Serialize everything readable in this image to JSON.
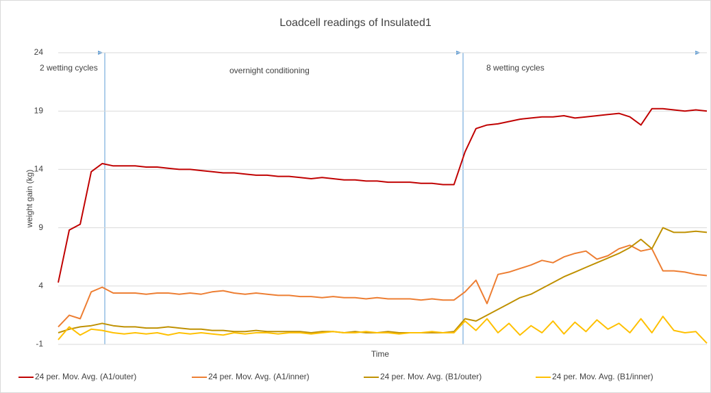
{
  "chart_data": {
    "type": "line",
    "title": "Loadcell readings of Insulated1",
    "x_label": "Time",
    "y_label": "weight gain (kg)",
    "annotations": [
      "2 wetting cycles",
      "overnight conditioning",
      "8 wetting cycles"
    ],
    "categories": [
      null,
      null,
      null,
      null,
      null,
      null,
      null,
      null,
      null,
      null,
      null,
      null,
      null,
      null,
      null,
      null,
      null,
      null,
      null,
      null,
      null,
      null,
      null,
      null,
      null,
      null,
      null,
      null,
      null,
      null,
      null,
      null,
      null,
      null,
      null,
      null,
      null,
      null,
      null,
      null,
      null,
      null,
      null,
      null,
      null,
      null,
      null,
      null,
      null,
      null,
      null,
      null,
      null,
      null,
      null,
      null,
      null,
      null,
      null,
      null
    ],
    "ylim": [
      -1,
      24
    ],
    "yticks": [
      -1,
      4,
      9,
      14,
      19,
      24
    ],
    "grid": true,
    "legend": "bottom",
    "series": [
      {
        "name": "24 per. Mov. Avg. (A1/outer)",
        "color": "#c00000",
        "values": [
          4.3,
          8.8,
          9.3,
          13.8,
          14.5,
          14.3,
          14.3,
          14.3,
          14.2,
          14.2,
          14.1,
          14.0,
          14.0,
          13.9,
          13.8,
          13.7,
          13.7,
          13.6,
          13.5,
          13.5,
          13.4,
          13.4,
          13.3,
          13.2,
          13.3,
          13.2,
          13.1,
          13.1,
          13.0,
          13.0,
          12.9,
          12.9,
          12.9,
          12.8,
          12.8,
          12.7,
          12.7,
          15.5,
          17.5,
          17.8,
          17.9,
          18.1,
          18.3,
          18.4,
          18.5,
          18.5,
          18.6,
          18.4,
          18.5,
          18.6,
          18.7,
          18.8,
          18.5,
          17.8,
          19.2,
          19.2,
          19.1,
          19.0,
          19.1,
          19.0
        ]
      },
      {
        "name": "24 per. Mov. Avg. (A1/inner)",
        "color": "#ed7d31",
        "values": [
          0.5,
          1.5,
          1.2,
          3.5,
          3.9,
          3.4,
          3.4,
          3.4,
          3.3,
          3.4,
          3.4,
          3.3,
          3.4,
          3.3,
          3.5,
          3.6,
          3.4,
          3.3,
          3.4,
          3.3,
          3.2,
          3.2,
          3.1,
          3.1,
          3.0,
          3.1,
          3.0,
          3.0,
          2.9,
          3.0,
          2.9,
          2.9,
          2.9,
          2.8,
          2.9,
          2.8,
          2.8,
          3.5,
          4.5,
          2.5,
          5.0,
          5.2,
          5.5,
          5.8,
          6.2,
          6.0,
          6.5,
          6.8,
          7.0,
          6.3,
          6.6,
          7.2,
          7.5,
          7.0,
          7.2,
          5.3,
          5.3,
          5.2,
          5.0,
          4.9
        ]
      },
      {
        "name": "24 per. Mov. Avg. (B1/outer)",
        "color": "#bf9000",
        "values": [
          0.0,
          0.3,
          0.5,
          0.6,
          0.8,
          0.6,
          0.5,
          0.5,
          0.4,
          0.4,
          0.5,
          0.4,
          0.3,
          0.3,
          0.2,
          0.2,
          0.1,
          0.1,
          0.2,
          0.1,
          0.1,
          0.1,
          0.1,
          0.0,
          0.1,
          0.1,
          0.0,
          0.1,
          0.0,
          0.0,
          0.1,
          0.0,
          0.0,
          0.0,
          0.0,
          0.0,
          0.1,
          1.2,
          1.0,
          1.5,
          2.0,
          2.5,
          3.0,
          3.3,
          3.8,
          4.3,
          4.8,
          5.2,
          5.6,
          6.0,
          6.4,
          6.8,
          7.3,
          8.0,
          7.2,
          9.0,
          8.6,
          8.6,
          8.7,
          8.6
        ]
      },
      {
        "name": "24 per. Mov. Avg. (B1/inner)",
        "color": "#ffc000",
        "values": [
          -0.6,
          0.5,
          -0.2,
          0.3,
          0.2,
          0.0,
          -0.1,
          0.0,
          -0.1,
          0.0,
          -0.2,
          0.0,
          -0.1,
          0.0,
          -0.1,
          -0.2,
          0.0,
          -0.1,
          0.0,
          0.0,
          -0.1,
          0.0,
          0.0,
          -0.1,
          0.0,
          0.1,
          0.0,
          0.0,
          0.1,
          0.0,
          0.0,
          -0.1,
          0.0,
          0.0,
          0.1,
          0.0,
          0.0,
          1.0,
          0.2,
          1.2,
          0.0,
          0.8,
          -0.2,
          0.6,
          0.0,
          1.0,
          -0.1,
          0.9,
          0.1,
          1.1,
          0.3,
          0.8,
          0.0,
          1.2,
          0.0,
          1.4,
          0.2,
          0.0,
          0.1,
          -0.9
        ]
      }
    ]
  }
}
